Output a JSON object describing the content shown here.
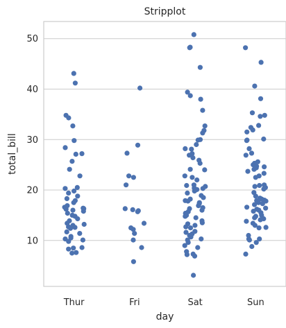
{
  "chart_data": {
    "type": "scatter",
    "subtype": "stripplot",
    "title": "Stripplot",
    "xlabel": "day",
    "ylabel": "total_bill",
    "categories": [
      "Thur",
      "Fri",
      "Sat",
      "Sun"
    ],
    "ylim": [
      0.9,
      53.4
    ],
    "yticks": [
      10,
      20,
      30,
      40,
      50
    ],
    "grid": true,
    "point_color": "#4c72b0",
    "values": {
      "Thur": [
        43.1,
        41.2,
        34.8,
        34.3,
        32.7,
        29.8,
        28.4,
        27.2,
        27.1,
        25.7,
        24.1,
        22.8,
        20.5,
        20.3,
        19.8,
        19.4,
        18.8,
        18.3,
        17.9,
        17.5,
        16.9,
        16.6,
        16.4,
        16.3,
        16.2,
        16.0,
        15.8,
        15.4,
        15.0,
        14.8,
        14.3,
        13.9,
        13.4,
        13.2,
        13.0,
        12.7,
        12.6,
        12.4,
        11.7,
        11.4,
        10.8,
        10.5,
        10.3,
        10.1,
        9.8,
        8.6,
        8.5,
        8.3,
        7.6,
        7.5
      ],
      "Fri": [
        40.2,
        28.9,
        27.3,
        22.8,
        22.5,
        21.0,
        16.3,
        16.1,
        15.9,
        15.7,
        13.4,
        12.5,
        12.2,
        11.4,
        10.1,
        8.6,
        5.8
      ],
      "Sat": [
        50.8,
        48.3,
        48.2,
        44.3,
        39.4,
        38.7,
        38.0,
        35.8,
        32.7,
        31.8,
        31.3,
        30.0,
        29.9,
        29.0,
        28.2,
        28.1,
        27.2,
        26.9,
        26.4,
        25.9,
        25.3,
        24.1,
        24.0,
        22.8,
        22.5,
        22.0,
        21.0,
        20.9,
        20.7,
        20.4,
        20.3,
        20.1,
        19.8,
        19.4,
        18.9,
        18.5,
        18.2,
        17.9,
        17.8,
        17.5,
        17.3,
        16.9,
        16.5,
        16.3,
        16.0,
        15.7,
        15.4,
        15.0,
        14.8,
        14.5,
        13.9,
        13.5,
        13.3,
        13.0,
        12.7,
        12.5,
        11.8,
        11.6,
        11.3,
        11.0,
        10.7,
        10.3,
        10.1,
        9.6,
        9.0,
        8.6,
        7.8,
        7.3,
        7.2,
        6.9,
        3.1
      ],
      "Sun": [
        48.2,
        45.3,
        40.6,
        38.1,
        35.3,
        34.8,
        34.6,
        32.8,
        32.4,
        31.9,
        31.5,
        30.1,
        29.9,
        29.8,
        28.2,
        27.3,
        26.9,
        25.6,
        25.3,
        25.0,
        24.7,
        24.6,
        24.4,
        24.1,
        23.7,
        23.3,
        22.8,
        22.5,
        21.0,
        20.9,
        20.7,
        20.5,
        20.2,
        19.5,
        18.8,
        18.4,
        18.2,
        18.0,
        17.9,
        17.8,
        17.5,
        17.3,
        17.1,
        16.6,
        16.4,
        16.2,
        16.0,
        15.8,
        15.5,
        15.0,
        14.8,
        14.5,
        14.3,
        14.1,
        13.8,
        13.4,
        13.0,
        12.6,
        12.5,
        11.0,
        10.3,
        10.3,
        10.1,
        9.6,
        8.8,
        7.3
      ]
    }
  }
}
